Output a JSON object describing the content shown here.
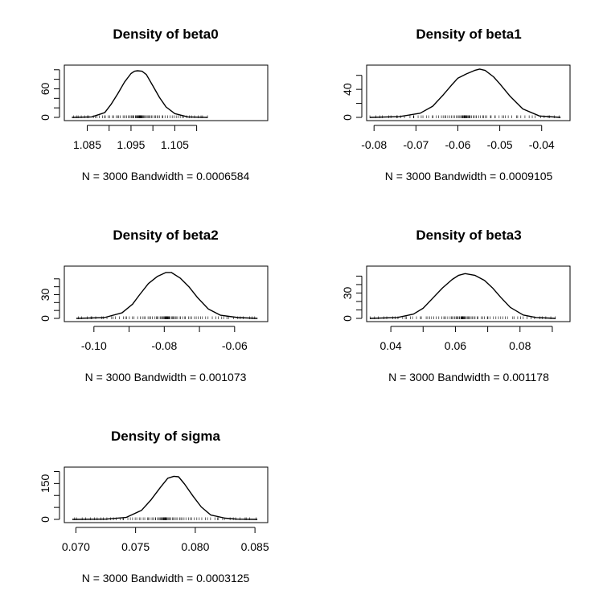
{
  "chart_data": [
    {
      "type": "line",
      "title": "Density of beta0",
      "subtitle": "N = 3000   Bandwidth = 0.0006584",
      "xlim": [
        1.0805,
        1.1255
      ],
      "ylim": [
        0,
        103
      ],
      "xticks": [
        1.085,
        1.09,
        1.095,
        1.1,
        1.105,
        1.11
      ],
      "xtick_labels": [
        "1.085",
        "1.095",
        "1.105"
      ],
      "yticks": [
        0,
        20,
        40,
        60,
        80,
        100
      ],
      "ytick_labels": [
        "0",
        "60"
      ],
      "grid": false,
      "rug": true,
      "series": [
        {
          "x": [
            1.0815,
            1.086,
            1.089,
            1.0905,
            1.092,
            1.0935,
            1.095,
            1.0958,
            1.0965,
            1.0975,
            1.0985,
            1.1,
            1.1015,
            1.103,
            1.105,
            1.108,
            1.1125
          ],
          "y": [
            0,
            1,
            10,
            28,
            50,
            74,
            92,
            97,
            98,
            97,
            90,
            66,
            42,
            22,
            8,
            1,
            0
          ]
        }
      ]
    },
    {
      "type": "line",
      "title": "Density of beta1",
      "subtitle": "N = 3000   Bandwidth = 0.0009105",
      "xlim": [
        -0.081,
        -0.034
      ],
      "ylim": [
        0,
        70
      ],
      "xticks": [
        -0.08,
        -0.07,
        -0.06,
        -0.05,
        -0.04
      ],
      "xtick_labels": [
        "-0.08",
        "-0.07",
        "-0.06",
        "-0.05",
        "-0.04"
      ],
      "yticks": [
        0,
        20,
        40,
        60
      ],
      "ytick_labels": [
        "0",
        "40"
      ],
      "grid": false,
      "rug": true,
      "series": [
        {
          "x": [
            -0.081,
            -0.074,
            -0.069,
            -0.066,
            -0.0635,
            -0.0615,
            -0.06,
            -0.058,
            -0.056,
            -0.0548,
            -0.0535,
            -0.0515,
            -0.05,
            -0.0475,
            -0.0445,
            -0.0405,
            -0.0355
          ],
          "y": [
            0,
            1,
            6,
            16,
            32,
            46,
            56,
            62,
            67,
            69,
            67,
            58,
            48,
            30,
            12,
            2,
            0
          ]
        }
      ]
    },
    {
      "type": "line",
      "title": "Density of beta2",
      "subtitle": "N = 3000   Bandwidth = 0.001073",
      "xlim": [
        -0.1075,
        -0.0515
      ],
      "ylim": [
        0,
        62
      ],
      "xticks": [
        -0.1,
        -0.09,
        -0.08,
        -0.07,
        -0.06
      ],
      "xtick_labels": [
        "-0.10",
        "-0.08",
        "-0.06"
      ],
      "yticks": [
        0,
        10,
        20,
        30,
        40,
        50
      ],
      "ytick_labels": [
        "0",
        "30"
      ],
      "grid": false,
      "rug": true,
      "series": [
        {
          "x": [
            -0.105,
            -0.097,
            -0.092,
            -0.089,
            -0.087,
            -0.0845,
            -0.082,
            -0.0795,
            -0.078,
            -0.0755,
            -0.073,
            -0.0705,
            -0.0675,
            -0.064,
            -0.059,
            -0.0535
          ],
          "y": [
            0,
            1,
            7,
            18,
            30,
            44,
            53,
            58,
            58,
            51,
            40,
            26,
            12,
            4,
            1,
            0
          ]
        }
      ]
    },
    {
      "type": "line",
      "title": "Density of beta3",
      "subtitle": "N = 3000   Bandwidth = 0.001178",
      "xlim": [
        0.0335,
        0.0945
      ],
      "ylim": [
        0,
        58
      ],
      "xticks": [
        0.04,
        0.05,
        0.06,
        0.07,
        0.08,
        0.09
      ],
      "xtick_labels": [
        "0.04",
        "0.06",
        "0.08"
      ],
      "yticks": [
        0,
        10,
        20,
        30,
        40,
        50
      ],
      "ytick_labels": [
        "0",
        "30"
      ],
      "grid": false,
      "rug": true,
      "series": [
        {
          "x": [
            0.0335,
            0.042,
            0.047,
            0.05,
            0.053,
            0.056,
            0.059,
            0.061,
            0.063,
            0.066,
            0.069,
            0.0715,
            0.074,
            0.077,
            0.081,
            0.085,
            0.091
          ],
          "y": [
            0,
            1,
            5,
            12,
            24,
            36,
            46,
            51,
            53,
            51,
            45,
            36,
            25,
            13,
            4,
            1,
            0
          ]
        }
      ]
    },
    {
      "type": "line",
      "title": "Density of sigma",
      "subtitle": "N = 3000   Bandwidth = 0.0003125",
      "xlim": [
        0.0693,
        0.0858
      ],
      "ylim": [
        0,
        205
      ],
      "xticks": [
        0.07,
        0.075,
        0.08,
        0.085
      ],
      "xtick_labels": [
        "0.070",
        "0.075",
        "0.080",
        "0.085"
      ],
      "yticks": [
        0,
        50,
        100,
        150,
        200
      ],
      "ytick_labels": [
        "0",
        "150"
      ],
      "grid": false,
      "rug": true,
      "series": [
        {
          "x": [
            0.0697,
            0.0725,
            0.0742,
            0.0755,
            0.0763,
            0.0771,
            0.0777,
            0.0782,
            0.0786,
            0.0791,
            0.0798,
            0.0805,
            0.0813,
            0.0825,
            0.0835,
            0.0852
          ],
          "y": [
            0,
            1,
            8,
            38,
            82,
            135,
            172,
            180,
            178,
            148,
            98,
            52,
            18,
            5,
            1,
            0
          ]
        }
      ]
    }
  ]
}
